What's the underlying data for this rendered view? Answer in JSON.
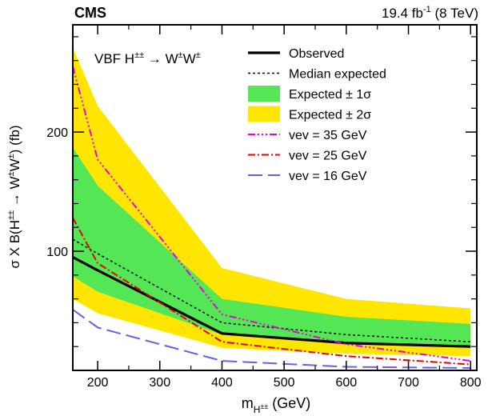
{
  "chart_data": {
    "type": "line",
    "experiment": "CMS",
    "luminosity": "19.4 fb",
    "luminosity_exp": "-1",
    "energy": "(8 TeV)",
    "process": {
      "a": "VBF H",
      "a_sup": "±±",
      "arrow": " → ",
      "b": "W",
      "b_sup": "±",
      "c": "W",
      "c_sup": "±"
    },
    "xlabel": {
      "main": "m",
      "sub": "H",
      "sub_sup": "±±",
      "unit": " (GeV)"
    },
    "ylabel": {
      "p1": "σ X B(H",
      "s1": "±±",
      "p2": " → W",
      "s2": "±",
      "p3": "W",
      "s3": "±",
      "p4": ") (fb)"
    },
    "xlim": [
      160,
      810
    ],
    "ylim": [
      0,
      290
    ],
    "xticks": [
      200,
      300,
      400,
      500,
      600,
      700,
      800
    ],
    "xtick_labels": [
      "200",
      "300",
      "400",
      "500",
      "600",
      "700",
      "800"
    ],
    "xticks_minor": [
      250,
      350,
      450,
      550,
      650,
      750
    ],
    "yticks": [
      100,
      200
    ],
    "ytick_labels": [
      "100",
      "200"
    ],
    "yticks_minor": [
      20,
      40,
      60,
      80,
      120,
      140,
      160,
      180,
      220,
      240,
      260,
      280
    ],
    "x": [
      160,
      200,
      400,
      600,
      800
    ],
    "band_2sigma": {
      "lower": [
        60,
        48,
        19,
        14,
        12
      ],
      "upper": [
        271,
        222,
        86,
        60,
        52
      ]
    },
    "band_1sigma": {
      "lower": [
        79,
        66,
        30,
        22,
        19
      ],
      "upper": [
        187,
        155,
        60,
        45,
        39
      ]
    },
    "series": [
      {
        "name": "Observed",
        "color": "#000000",
        "dash": "",
        "width": 3.2,
        "values": [
          95,
          84,
          31,
          23,
          20
        ]
      },
      {
        "name": "Median expected",
        "color": "#000000",
        "dash": "3 3",
        "width": 1.5,
        "values": [
          110,
          98,
          40,
          30,
          24
        ]
      },
      {
        "name": "vev = 35 GeV",
        "color": "#e600e6",
        "dash": "9 3 2 3 2 3 2 3",
        "width": 2,
        "values": [
          255,
          177,
          47,
          22,
          8
        ]
      },
      {
        "name": "vev = 25 GeV",
        "color": "#e60000",
        "dash": "9 3 2 3",
        "width": 2,
        "values": [
          128,
          90,
          24,
          12,
          5
        ]
      },
      {
        "name": "vev = 16 GeV",
        "color": "#6b5ee0",
        "dash": "18 7",
        "width": 2,
        "values": [
          51,
          36,
          8,
          3,
          2
        ]
      }
    ],
    "band_colors": {
      "one_sigma": "#55e655",
      "two_sigma": "#ffe600"
    },
    "legend": {
      "position": "top-right",
      "entries": [
        {
          "label": "Observed",
          "kind": "line",
          "series": 0
        },
        {
          "label": "Median expected",
          "kind": "line",
          "series": 1
        },
        {
          "label": "Expected ± 1σ",
          "kind": "box",
          "color": "#55e655"
        },
        {
          "label": "Expected ± 2σ",
          "kind": "box",
          "color": "#ffe600"
        },
        {
          "label": "vev = 35 GeV",
          "kind": "line",
          "series": 2
        },
        {
          "label": "vev = 25 GeV",
          "kind": "line",
          "series": 3
        },
        {
          "label": "vev = 16 GeV",
          "kind": "line",
          "series": 4
        }
      ]
    }
  }
}
